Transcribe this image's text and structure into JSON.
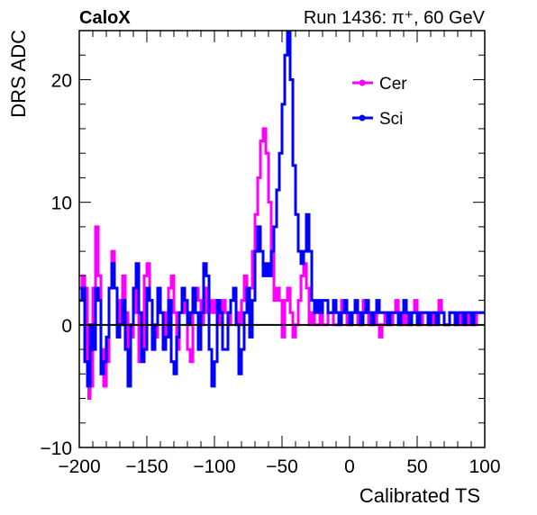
{
  "header": {
    "left_label": "CaloX",
    "right_label": "Run 1436:   π⁺, 60 GeV"
  },
  "chart_data": {
    "type": "line",
    "xlabel": "Calibrated TS",
    "ylabel": "DRS ADC",
    "xlim": [
      -200,
      100
    ],
    "ylim": [
      -10,
      24
    ],
    "x_ticks": [
      -200,
      -150,
      -100,
      -50,
      0,
      50,
      100
    ],
    "y_ticks": [
      -10,
      0,
      10,
      20
    ],
    "x_tick_labels": [
      "−200",
      "−150",
      "−100",
      "−50",
      "0",
      "50",
      "100"
    ],
    "y_tick_labels": [
      "−10",
      "0",
      "10",
      "20"
    ],
    "grid": false,
    "zero_line": true,
    "legend_position": "top-right",
    "series": [
      {
        "name": "Cer",
        "color": "#ff00ff",
        "points": [
          [
            -200,
            3
          ],
          [
            -198,
            4
          ],
          [
            -196,
            3
          ],
          [
            -194,
            -3
          ],
          [
            -193,
            -6
          ],
          [
            -192,
            -5
          ],
          [
            -190,
            3
          ],
          [
            -188,
            8
          ],
          [
            -186,
            4
          ],
          [
            -184,
            -2
          ],
          [
            -182,
            -5
          ],
          [
            -180,
            -3
          ],
          [
            -178,
            3
          ],
          [
            -176,
            6
          ],
          [
            -174,
            3
          ],
          [
            -172,
            -1
          ],
          [
            -170,
            2
          ],
          [
            -168,
            4
          ],
          [
            -166,
            1
          ],
          [
            -164,
            -3
          ],
          [
            -162,
            -1
          ],
          [
            -160,
            3
          ],
          [
            -158,
            1
          ],
          [
            -156,
            -3
          ],
          [
            -154,
            -2
          ],
          [
            -152,
            4
          ],
          [
            -150,
            5
          ],
          [
            -148,
            2
          ],
          [
            -146,
            -2
          ],
          [
            -144,
            -1
          ],
          [
            -142,
            3
          ],
          [
            -140,
            1
          ],
          [
            -138,
            -1
          ],
          [
            -136,
            1
          ],
          [
            -134,
            3
          ],
          [
            -132,
            4
          ],
          [
            -130,
            1
          ],
          [
            -128,
            -2
          ],
          [
            -126,
            1
          ],
          [
            -124,
            3
          ],
          [
            -122,
            1
          ],
          [
            -120,
            -2
          ],
          [
            -118,
            -3
          ],
          [
            -116,
            1
          ],
          [
            -114,
            3
          ],
          [
            -112,
            2
          ],
          [
            -110,
            0
          ],
          [
            -108,
            1
          ],
          [
            -106,
            3
          ],
          [
            -104,
            2
          ],
          [
            -102,
            1
          ],
          [
            -100,
            2
          ],
          [
            -98,
            1
          ],
          [
            -96,
            0
          ],
          [
            -94,
            2
          ],
          [
            -92,
            1
          ],
          [
            -90,
            0
          ],
          [
            -88,
            2
          ],
          [
            -86,
            3
          ],
          [
            -84,
            1
          ],
          [
            -82,
            0
          ],
          [
            -80,
            2
          ],
          [
            -78,
            4
          ],
          [
            -76,
            2
          ],
          [
            -74,
            3
          ],
          [
            -72,
            6
          ],
          [
            -70,
            9
          ],
          [
            -68,
            12
          ],
          [
            -66,
            15
          ],
          [
            -64,
            16
          ],
          [
            -62,
            14
          ],
          [
            -60,
            10
          ],
          [
            -58,
            6
          ],
          [
            -56,
            2
          ],
          [
            -54,
            3
          ],
          [
            -52,
            2
          ],
          [
            -50,
            -1
          ],
          [
            -48,
            2
          ],
          [
            -46,
            3
          ],
          [
            -44,
            1
          ],
          [
            -42,
            -1
          ],
          [
            -40,
            0
          ],
          [
            -38,
            2
          ],
          [
            -36,
            4
          ],
          [
            -34,
            5
          ],
          [
            -32,
            3
          ],
          [
            -30,
            0
          ],
          [
            -28,
            1
          ],
          [
            -26,
            0
          ],
          [
            -24,
            0
          ],
          [
            -22,
            1
          ],
          [
            -20,
            0
          ],
          [
            -18,
            0
          ],
          [
            -16,
            1
          ],
          [
            -14,
            1
          ],
          [
            -12,
            0
          ],
          [
            -10,
            0
          ],
          [
            -8,
            1
          ],
          [
            -6,
            2
          ],
          [
            -4,
            1
          ],
          [
            -2,
            0
          ],
          [
            0,
            0
          ],
          [
            2,
            1
          ],
          [
            4,
            1
          ],
          [
            6,
            0
          ],
          [
            8,
            1
          ],
          [
            10,
            2
          ],
          [
            12,
            1
          ],
          [
            14,
            0
          ],
          [
            16,
            1
          ],
          [
            18,
            1
          ],
          [
            20,
            0
          ],
          [
            22,
            -1
          ],
          [
            24,
            0
          ],
          [
            26,
            1
          ],
          [
            28,
            1
          ],
          [
            30,
            0
          ],
          [
            32,
            1
          ],
          [
            34,
            2
          ],
          [
            36,
            1
          ],
          [
            38,
            0
          ],
          [
            40,
            1
          ],
          [
            42,
            0
          ],
          [
            44,
            0
          ],
          [
            46,
            1
          ],
          [
            48,
            2
          ],
          [
            50,
            1
          ],
          [
            52,
            0
          ],
          [
            54,
            1
          ],
          [
            56,
            1
          ],
          [
            58,
            0
          ],
          [
            60,
            0
          ],
          [
            62,
            1
          ],
          [
            64,
            1
          ],
          [
            66,
            2
          ],
          [
            68,
            1
          ],
          [
            70,
            0
          ],
          [
            72,
            0
          ],
          [
            74,
            1
          ],
          [
            76,
            1
          ],
          [
            78,
            0
          ],
          [
            80,
            0
          ],
          [
            82,
            1
          ],
          [
            84,
            1
          ],
          [
            86,
            0
          ],
          [
            88,
            1
          ],
          [
            90,
            1
          ],
          [
            92,
            0
          ],
          [
            94,
            1
          ],
          [
            96,
            1
          ],
          [
            98,
            1
          ],
          [
            100,
            1
          ]
        ]
      },
      {
        "name": "Sci",
        "color": "#0000ff",
        "points": [
          [
            -200,
            2
          ],
          [
            -198,
            3
          ],
          [
            -196,
            -3
          ],
          [
            -194,
            -5
          ],
          [
            -192,
            0
          ],
          [
            -190,
            -2
          ],
          [
            -188,
            3
          ],
          [
            -186,
            2
          ],
          [
            -184,
            -4
          ],
          [
            -182,
            -3
          ],
          [
            -180,
            -1
          ],
          [
            -178,
            3
          ],
          [
            -176,
            5
          ],
          [
            -174,
            3
          ],
          [
            -172,
            -1
          ],
          [
            -170,
            0
          ],
          [
            -168,
            2
          ],
          [
            -166,
            -2
          ],
          [
            -164,
            -5
          ],
          [
            -162,
            0
          ],
          [
            -160,
            3
          ],
          [
            -158,
            5
          ],
          [
            -156,
            1
          ],
          [
            -154,
            -3
          ],
          [
            -152,
            -2
          ],
          [
            -150,
            3
          ],
          [
            -148,
            2
          ],
          [
            -146,
            -2
          ],
          [
            -144,
            0
          ],
          [
            -142,
            3
          ],
          [
            -140,
            1
          ],
          [
            -138,
            -2
          ],
          [
            -136,
            -1
          ],
          [
            -134,
            2
          ],
          [
            -132,
            -3
          ],
          [
            -130,
            -4
          ],
          [
            -128,
            -1
          ],
          [
            -126,
            1
          ],
          [
            -124,
            3
          ],
          [
            -122,
            2
          ],
          [
            -120,
            0
          ],
          [
            -118,
            1
          ],
          [
            -116,
            3
          ],
          [
            -114,
            1
          ],
          [
            -112,
            -2
          ],
          [
            -110,
            1
          ],
          [
            -108,
            5
          ],
          [
            -106,
            4
          ],
          [
            -104,
            -2
          ],
          [
            -102,
            -5
          ],
          [
            -100,
            -3
          ],
          [
            -98,
            2
          ],
          [
            -96,
            1
          ],
          [
            -94,
            -2
          ],
          [
            -92,
            -2
          ],
          [
            -90,
            1
          ],
          [
            -88,
            2
          ],
          [
            -86,
            3
          ],
          [
            -84,
            0
          ],
          [
            -82,
            -4
          ],
          [
            -80,
            -2
          ],
          [
            -78,
            1
          ],
          [
            -76,
            3
          ],
          [
            -74,
            -1
          ],
          [
            -72,
            2
          ],
          [
            -70,
            6
          ],
          [
            -68,
            8
          ],
          [
            -66,
            6
          ],
          [
            -64,
            4
          ],
          [
            -62,
            5
          ],
          [
            -60,
            4
          ],
          [
            -58,
            6
          ],
          [
            -56,
            8
          ],
          [
            -54,
            11
          ],
          [
            -52,
            14
          ],
          [
            -50,
            18
          ],
          [
            -48,
            22
          ],
          [
            -46,
            24
          ],
          [
            -44,
            20
          ],
          [
            -42,
            13
          ],
          [
            -40,
            9
          ],
          [
            -38,
            6
          ],
          [
            -36,
            5
          ],
          [
            -34,
            6
          ],
          [
            -32,
            9
          ],
          [
            -30,
            6
          ],
          [
            -28,
            2
          ],
          [
            -26,
            1
          ],
          [
            -24,
            2
          ],
          [
            -22,
            1
          ],
          [
            -20,
            2
          ],
          [
            -18,
            2
          ],
          [
            -16,
            1
          ],
          [
            -14,
            1
          ],
          [
            -12,
            2
          ],
          [
            -10,
            1
          ],
          [
            -8,
            0
          ],
          [
            -6,
            1
          ],
          [
            -4,
            2
          ],
          [
            -2,
            1
          ],
          [
            0,
            0
          ],
          [
            2,
            1
          ],
          [
            4,
            2
          ],
          [
            6,
            1
          ],
          [
            8,
            0
          ],
          [
            10,
            1
          ],
          [
            12,
            2
          ],
          [
            14,
            1
          ],
          [
            16,
            0
          ],
          [
            18,
            1
          ],
          [
            20,
            2
          ],
          [
            22,
            1
          ],
          [
            24,
            1
          ],
          [
            26,
            1
          ],
          [
            28,
            0
          ],
          [
            30,
            1
          ],
          [
            32,
            1
          ],
          [
            34,
            1
          ],
          [
            36,
            0
          ],
          [
            38,
            1
          ],
          [
            40,
            2
          ],
          [
            42,
            1
          ],
          [
            44,
            0
          ],
          [
            46,
            1
          ],
          [
            48,
            1
          ],
          [
            50,
            0
          ],
          [
            52,
            1
          ],
          [
            54,
            1
          ],
          [
            56,
            1
          ],
          [
            58,
            0
          ],
          [
            60,
            1
          ],
          [
            62,
            1
          ],
          [
            64,
            0
          ],
          [
            66,
            1
          ],
          [
            68,
            1
          ],
          [
            70,
            0
          ],
          [
            72,
            0
          ],
          [
            74,
            1
          ],
          [
            76,
            1
          ],
          [
            78,
            0
          ],
          [
            80,
            1
          ],
          [
            82,
            1
          ],
          [
            84,
            0
          ],
          [
            86,
            1
          ],
          [
            88,
            1
          ],
          [
            90,
            0
          ],
          [
            92,
            1
          ],
          [
            94,
            1
          ],
          [
            96,
            1
          ],
          [
            98,
            1
          ],
          [
            100,
            1
          ]
        ]
      }
    ]
  }
}
